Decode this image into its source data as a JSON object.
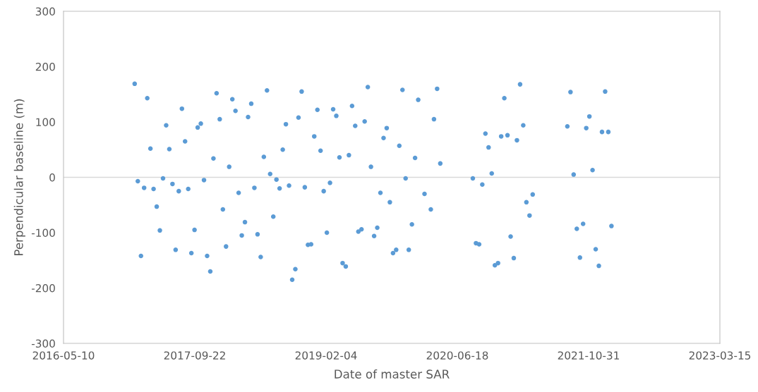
{
  "chart_data": {
    "type": "scatter",
    "xlabel": "Date of master SAR",
    "ylabel": "Perpendicular baseline (m)",
    "xlim": [
      "2016-05-10",
      "2023-03-15"
    ],
    "xticks": [
      "2016-05-10",
      "2017-09-22",
      "2019-02-04",
      "2020-06-18",
      "2021-10-31",
      "2023-03-15"
    ],
    "ylim": [
      -300,
      300
    ],
    "yticks": [
      -300,
      -200,
      -100,
      0,
      100,
      200,
      300
    ],
    "grid": false,
    "legend": false,
    "marker": "circle",
    "ref_lines": [
      {
        "axis": "y",
        "value": 0,
        "color": "#d9d9d9"
      }
    ],
    "series": [
      {
        "color": "#5b9bd5",
        "x": [
          "2017-02-05",
          "2017-02-17",
          "2017-03-01",
          "2017-03-13",
          "2017-03-25",
          "2017-04-06",
          "2017-04-18",
          "2017-04-30",
          "2017-05-12",
          "2017-05-24",
          "2017-06-05",
          "2017-06-17",
          "2017-06-29",
          "2017-07-11",
          "2017-07-23",
          "2017-08-04",
          "2017-08-16",
          "2017-08-28",
          "2017-09-09",
          "2017-09-21",
          "2017-10-03",
          "2017-10-15",
          "2017-10-27",
          "2017-11-08",
          "2017-11-20",
          "2017-12-02",
          "2017-12-14",
          "2017-12-26",
          "2018-01-07",
          "2018-01-19",
          "2018-01-31",
          "2018-02-12",
          "2018-02-24",
          "2018-03-08",
          "2018-03-20",
          "2018-04-01",
          "2018-04-13",
          "2018-04-25",
          "2018-05-07",
          "2018-05-19",
          "2018-05-31",
          "2018-06-12",
          "2018-06-24",
          "2018-07-06",
          "2018-07-18",
          "2018-07-30",
          "2018-08-11",
          "2018-08-23",
          "2018-09-04",
          "2018-09-16",
          "2018-09-28",
          "2018-10-10",
          "2018-10-22",
          "2018-11-03",
          "2018-11-15",
          "2018-11-27",
          "2018-12-09",
          "2018-12-21",
          "2019-01-02",
          "2019-01-14",
          "2019-01-26",
          "2019-02-07",
          "2019-02-19",
          "2019-03-03",
          "2019-03-15",
          "2019-03-27",
          "2019-04-08",
          "2019-04-20",
          "2019-05-02",
          "2019-05-14",
          "2019-05-26",
          "2019-06-07",
          "2019-06-19",
          "2019-07-01",
          "2019-07-13",
          "2019-07-25",
          "2019-08-06",
          "2019-08-18",
          "2019-08-30",
          "2019-09-11",
          "2019-09-23",
          "2019-10-05",
          "2019-10-17",
          "2019-10-29",
          "2019-11-10",
          "2019-11-22",
          "2019-12-04",
          "2019-12-16",
          "2019-12-28",
          "2020-01-09",
          "2020-01-21",
          "2020-02-14",
          "2020-03-09",
          "2020-03-21",
          "2020-04-02",
          "2020-04-14",
          "2020-08-16",
          "2020-08-28",
          "2020-09-09",
          "2020-09-21",
          "2020-10-03",
          "2020-10-15",
          "2020-10-27",
          "2020-11-08",
          "2020-11-20",
          "2020-12-02",
          "2020-12-14",
          "2020-12-26",
          "2021-01-07",
          "2021-01-19",
          "2021-01-31",
          "2021-02-12",
          "2021-02-24",
          "2021-03-08",
          "2021-03-20",
          "2021-04-01",
          "2021-08-11",
          "2021-08-23",
          "2021-09-04",
          "2021-09-16",
          "2021-09-28",
          "2021-10-10",
          "2021-10-22",
          "2021-11-03",
          "2021-11-15",
          "2021-11-27",
          "2021-12-09",
          "2021-12-21",
          "2022-01-02",
          "2022-01-14",
          "2022-01-26"
        ],
        "values": [
          169,
          -7,
          -142,
          -19,
          143,
          52,
          -21,
          -53,
          -96,
          -2,
          94,
          51,
          -12,
          -131,
          -25,
          124,
          65,
          -21,
          -137,
          -95,
          90,
          97,
          -5,
          -142,
          -170,
          34,
          152,
          105,
          -58,
          -125,
          19,
          141,
          120,
          -28,
          -105,
          -81,
          109,
          133,
          -19,
          -103,
          -144,
          37,
          157,
          6,
          -71,
          -4,
          -20,
          50,
          96,
          -15,
          -185,
          -166,
          108,
          155,
          -18,
          -122,
          -121,
          74,
          122,
          48,
          -25,
          -100,
          -10,
          123,
          111,
          36,
          -155,
          -161,
          40,
          129,
          93,
          -98,
          -94,
          101,
          163,
          19,
          -106,
          -91,
          -28,
          71,
          89,
          -45,
          -137,
          -131,
          57,
          158,
          -2,
          -131,
          -85,
          35,
          140,
          -30,
          -58,
          105,
          160,
          25,
          -2,
          -119,
          -121,
          -13,
          79,
          54,
          7,
          -159,
          -155,
          74,
          143,
          76,
          -107,
          -146,
          67,
          168,
          94,
          -45,
          -69,
          -31,
          92,
          154,
          5,
          -93,
          -145,
          -84,
          89,
          110,
          13,
          -130,
          -160,
          82,
          155,
          82,
          -88
        ]
      }
    ]
  }
}
